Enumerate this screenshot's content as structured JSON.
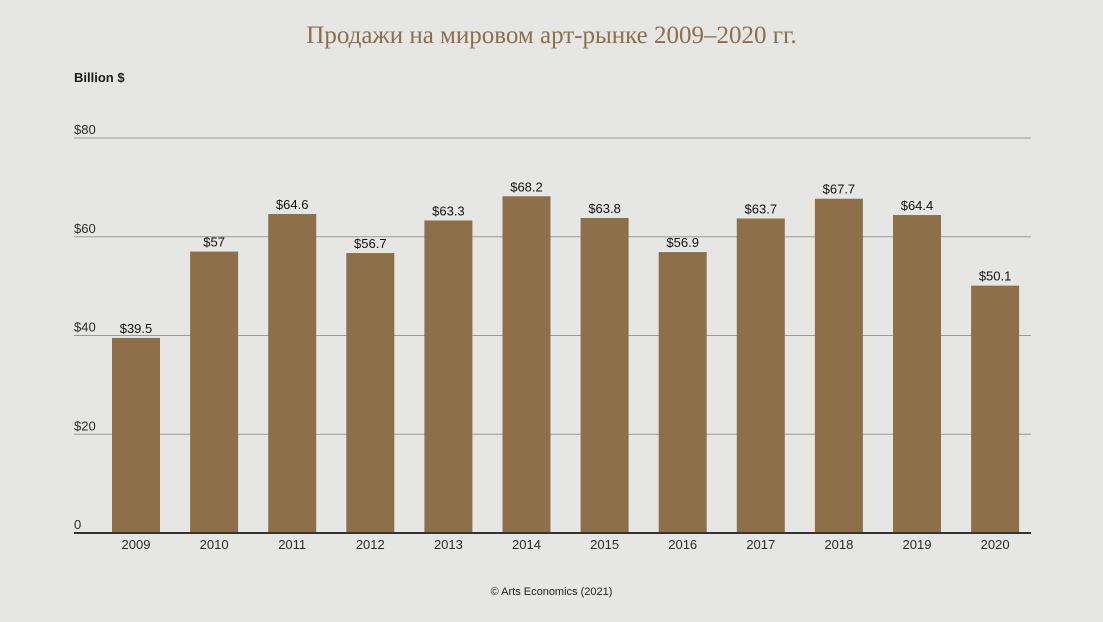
{
  "title": "Продажи на мировом арт-рынке 2009–2020 гг.",
  "unit_label": "Billion $",
  "footer": "© Arts Economics (2021)",
  "colors": {
    "bar": "#8d6f4a",
    "title": "#8d6f4a",
    "grid": "#9a9a9a",
    "axis": "#333333",
    "background": "#e6e6e5"
  },
  "chart_data": {
    "type": "bar",
    "categories": [
      "2009",
      "2010",
      "2011",
      "2012",
      "2013",
      "2014",
      "2015",
      "2016",
      "2017",
      "2018",
      "2019",
      "2020"
    ],
    "values": [
      39.5,
      57,
      64.6,
      56.7,
      63.3,
      68.2,
      63.8,
      56.9,
      63.7,
      67.7,
      64.4,
      50.1
    ],
    "value_labels": [
      "$39.5",
      "$57",
      "$64.6",
      "$56.7",
      "$63.3",
      "$68.2",
      "$63.8",
      "$56.9",
      "$63.7",
      "$67.7",
      "$64.4",
      "$50.1"
    ],
    "y_ticks": [
      0,
      20,
      40,
      60,
      80
    ],
    "y_tick_labels": [
      "0",
      "$20",
      "$40",
      "$60",
      "$80"
    ],
    "ylim": [
      0,
      80
    ],
    "ylabel": "Billion $",
    "grid": true
  }
}
